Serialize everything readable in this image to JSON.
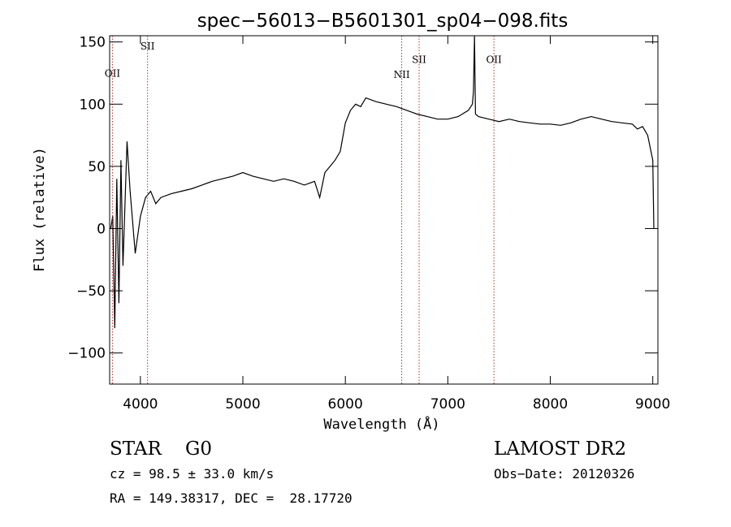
{
  "chart_data": {
    "type": "line",
    "title": "spec−56013−B5601301_sp04−098.fits",
    "xlabel": "Wavelength (Å)",
    "ylabel": "Flux (relative)",
    "xlim": [
      3700,
      9050
    ],
    "ylim": [
      -125,
      155
    ],
    "x_ticks": [
      4000,
      5000,
      6000,
      7000,
      8000,
      9000
    ],
    "y_ticks": [
      -100,
      -50,
      0,
      50,
      100,
      150
    ],
    "y_tick_labels": [
      "−100",
      "−50",
      "0",
      "50",
      "100",
      "150"
    ],
    "grid": false,
    "line_color": "#000000",
    "series": [
      {
        "values_x": [
          3710,
          3730,
          3750,
          3770,
          3790,
          3810,
          3830,
          3850,
          3870,
          3900,
          3950,
          4000,
          4050,
          4100,
          4150,
          4200,
          4300,
          4400,
          4500,
          4600,
          4700,
          4800,
          4900,
          5000,
          5100,
          5200,
          5300,
          5400,
          5500,
          5600,
          5700,
          5750,
          5800,
          5850,
          5900,
          5950,
          6000,
          6050,
          6100,
          6150,
          6200,
          6300,
          6400,
          6500,
          6600,
          6700,
          6800,
          6900,
          7000,
          7100,
          7200,
          7240,
          7250,
          7260,
          7270,
          7300,
          7400,
          7500,
          7600,
          7700,
          7800,
          7900,
          8000,
          8100,
          8200,
          8300,
          8400,
          8500,
          8600,
          8700,
          8800,
          8850,
          8900,
          8950,
          9000,
          9010
        ],
        "values_y": [
          0,
          10,
          -80,
          40,
          -60,
          55,
          -30,
          20,
          70,
          30,
          -20,
          10,
          25,
          30,
          20,
          25,
          28,
          30,
          32,
          35,
          38,
          40,
          42,
          45,
          42,
          40,
          38,
          40,
          38,
          35,
          38,
          25,
          45,
          50,
          55,
          62,
          85,
          95,
          100,
          98,
          105,
          102,
          100,
          98,
          95,
          92,
          90,
          88,
          88,
          90,
          95,
          100,
          110,
          155,
          92,
          90,
          88,
          86,
          88,
          86,
          85,
          84,
          84,
          83,
          85,
          88,
          90,
          88,
          86,
          85,
          84,
          80,
          82,
          75,
          55,
          0
        ]
      }
    ],
    "emission_lines": [
      {
        "label": "OII",
        "wavelength": 3727,
        "label_y": 122
      },
      {
        "label": "SII",
        "wavelength": 4070,
        "label_y": 144
      },
      {
        "label": "NII",
        "wavelength": 6550,
        "label_y": 121
      },
      {
        "label": "SII",
        "wavelength": 6720,
        "label_y": 133
      },
      {
        "label": "OII",
        "wavelength": 7450,
        "label_y": 133
      }
    ]
  },
  "info": {
    "class": "STAR    G0",
    "survey": "LAMOST DR2",
    "cz": "cz = 98.5 ± 33.0 km/s",
    "obs_date": "Obs−Date: 20120326",
    "coords": "RA = 149.38317, DEC =  28.17720"
  }
}
